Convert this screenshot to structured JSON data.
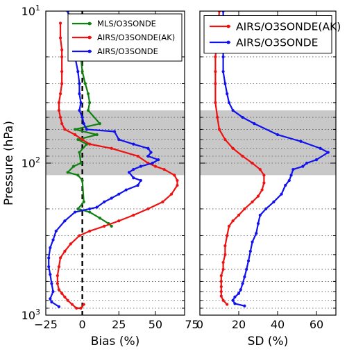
{
  "chart_data": [
    {
      "type": "line",
      "panel": "bias",
      "xlabel": "Bias (%)",
      "ylabel": "Pressure (hPa)",
      "xlim": [
        -25,
        70
      ],
      "ylim": [
        1000,
        10
      ],
      "y_scale": "log",
      "x_ticks": [
        "−25",
        "0",
        "25",
        "50",
        "75"
      ],
      "x_tick_values": [
        -25,
        0,
        25,
        50,
        75
      ],
      "y_ticks": [
        "10",
        "10",
        "10"
      ],
      "y_tick_exponents": [
        "1",
        "2",
        "3"
      ],
      "y_tick_values": [
        10,
        100,
        1000
      ],
      "shaded_band": [
        45,
        120
      ],
      "shade_color": "#c8c8c8",
      "zero_line": 0,
      "legend": "top-right",
      "series": [
        {
          "name": "MLS/O3SONDE",
          "color": "#118011",
          "points": [
            [
              -10,
              10
            ],
            [
              -4,
              15
            ],
            [
              -1,
              20
            ],
            [
              0,
              25
            ],
            [
              2,
              30
            ],
            [
              4,
              35
            ],
            [
              5,
              40
            ],
            [
              4,
              45
            ],
            [
              12,
              55
            ],
            [
              -5,
              60
            ],
            [
              10,
              65
            ],
            [
              -3,
              70
            ],
            [
              3,
              75
            ],
            [
              -2,
              85
            ],
            [
              -1,
              100
            ],
            [
              -6,
              105
            ],
            [
              -10,
              115
            ],
            [
              -3,
              120
            ],
            [
              0,
              130
            ],
            [
              1,
              180
            ],
            [
              -3,
              200
            ],
            [
              5,
              210
            ],
            [
              12,
              230
            ],
            [
              18,
              250
            ],
            [
              20,
              260
            ]
          ]
        },
        {
          "name": "AIRS/O3SONDE(AK)",
          "color": "#ee1111",
          "points": [
            [
              -15,
              12
            ],
            [
              -15,
              15
            ],
            [
              -14,
              18
            ],
            [
              -14,
              20
            ],
            [
              -14,
              25
            ],
            [
              -14,
              30
            ],
            [
              -15,
              35
            ],
            [
              -16,
              40
            ],
            [
              -16,
              45
            ],
            [
              -15,
              50
            ],
            [
              -14,
              55
            ],
            [
              -12,
              60
            ],
            [
              -5,
              65
            ],
            [
              0,
              70
            ],
            [
              5,
              75
            ],
            [
              20,
              80
            ],
            [
              38,
              90
            ],
            [
              45,
              100
            ],
            [
              50,
              105
            ],
            [
              56,
              110
            ],
            [
              63,
              120
            ],
            [
              65,
              130
            ],
            [
              65,
              140
            ],
            [
              61,
              160
            ],
            [
              55,
              180
            ],
            [
              45,
              200
            ],
            [
              35,
              220
            ],
            [
              25,
              240
            ],
            [
              15,
              260
            ],
            [
              5,
              280
            ],
            [
              -2,
              300
            ],
            [
              -8,
              340
            ],
            [
              -12,
              380
            ],
            [
              -15,
              420
            ],
            [
              -16,
              480
            ],
            [
              -17,
              550
            ],
            [
              -17,
              620
            ],
            [
              -16,
              680
            ],
            [
              -14,
              720
            ],
            [
              -12,
              760
            ],
            [
              -10,
              800
            ],
            [
              -7,
              850
            ],
            [
              -4,
              900
            ],
            [
              -1,
              900
            ],
            [
              1,
              850
            ]
          ]
        },
        {
          "name": "AIRS/O3SONDE",
          "color": "#1111ee",
          "points": [
            [
              -10,
              10
            ],
            [
              -6,
              15
            ],
            [
              -5,
              20
            ],
            [
              -3,
              25
            ],
            [
              -2,
              30
            ],
            [
              -2,
              35
            ],
            [
              -1,
              40
            ],
            [
              -2,
              45
            ],
            [
              0,
              50
            ],
            [
              1,
              55
            ],
            [
              3,
              60
            ],
            [
              22,
              62
            ],
            [
              25,
              70
            ],
            [
              35,
              75
            ],
            [
              45,
              80
            ],
            [
              47,
              85
            ],
            [
              45,
              90
            ],
            [
              52,
              95
            ],
            [
              48,
              100
            ],
            [
              40,
              105
            ],
            [
              35,
              110
            ],
            [
              32,
              115
            ],
            [
              35,
              125
            ],
            [
              40,
              130
            ],
            [
              38,
              140
            ],
            [
              30,
              150
            ],
            [
              25,
              160
            ],
            [
              20,
              170
            ],
            [
              15,
              180
            ],
            [
              10,
              195
            ],
            [
              5,
              200
            ],
            [
              -5,
              210
            ],
            [
              -12,
              240
            ],
            [
              -18,
              280
            ],
            [
              -20,
              320
            ],
            [
              -22,
              360
            ],
            [
              -23,
              420
            ],
            [
              -23,
              480
            ],
            [
              -22,
              540
            ],
            [
              -21,
              620
            ],
            [
              -20,
              700
            ],
            [
              -22,
              780
            ],
            [
              -21,
              820
            ],
            [
              -16,
              880
            ]
          ]
        }
      ]
    },
    {
      "type": "line",
      "panel": "sd",
      "xlabel": "SD (%)",
      "xlim": [
        0,
        70
      ],
      "ylim": [
        1000,
        10
      ],
      "y_scale": "log",
      "x_ticks": [
        "0",
        "20",
        "40",
        "60"
      ],
      "x_tick_values": [
        0,
        20,
        40,
        60
      ],
      "shaded_band": [
        45,
        120
      ],
      "legend": "top-right",
      "series": [
        {
          "name": "AIRS/O3SONDE(AK)",
          "color": "#ee1111",
          "points": [
            [
              10,
              10
            ],
            [
              9,
              15
            ],
            [
              8,
              20
            ],
            [
              8,
              25
            ],
            [
              8,
              30
            ],
            [
              8,
              40
            ],
            [
              9,
              50
            ],
            [
              10,
              60
            ],
            [
              13,
              70
            ],
            [
              17,
              80
            ],
            [
              22,
              90
            ],
            [
              27,
              100
            ],
            [
              31,
              110
            ],
            [
              33,
              120
            ],
            [
              33,
              135
            ],
            [
              32,
              150
            ],
            [
              30,
              165
            ],
            [
              27,
              180
            ],
            [
              23,
              200
            ],
            [
              20,
              220
            ],
            [
              17,
              240
            ],
            [
              15,
              260
            ],
            [
              14,
              300
            ],
            [
              13,
              350
            ],
            [
              13,
              400
            ],
            [
              12,
              450
            ],
            [
              12,
              500
            ],
            [
              11,
              550
            ],
            [
              11,
              600
            ],
            [
              11,
              650
            ],
            [
              11,
              700
            ],
            [
              11,
              750
            ],
            [
              12,
              800
            ],
            [
              14,
              850
            ]
          ]
        },
        {
          "name": "AIRS/O3SONDE",
          "color": "#1111ee",
          "points": [
            [
              12,
              10
            ],
            [
              12,
              15
            ],
            [
              12,
              20
            ],
            [
              12,
              25
            ],
            [
              13,
              30
            ],
            [
              14,
              35
            ],
            [
              15,
              40
            ],
            [
              17,
              45
            ],
            [
              22,
              50
            ],
            [
              28,
              55
            ],
            [
              40,
              65
            ],
            [
              52,
              72
            ],
            [
              62,
              80
            ],
            [
              66,
              85
            ],
            [
              60,
              95
            ],
            [
              55,
              100
            ],
            [
              53,
              105
            ],
            [
              48,
              110
            ],
            [
              47,
              120
            ],
            [
              46,
              130
            ],
            [
              44,
              140
            ],
            [
              42,
              160
            ],
            [
              38,
              180
            ],
            [
              34,
              200
            ],
            [
              31,
              220
            ],
            [
              30,
              250
            ],
            [
              29,
              290
            ],
            [
              27,
              330
            ],
            [
              26,
              380
            ],
            [
              25,
              440
            ],
            [
              24,
              500
            ],
            [
              23,
              560
            ],
            [
              22,
              620
            ],
            [
              21,
              680
            ],
            [
              20,
              720
            ],
            [
              18,
              760
            ],
            [
              17,
              800
            ],
            [
              18,
              840
            ],
            [
              23,
              870
            ]
          ]
        }
      ]
    }
  ]
}
